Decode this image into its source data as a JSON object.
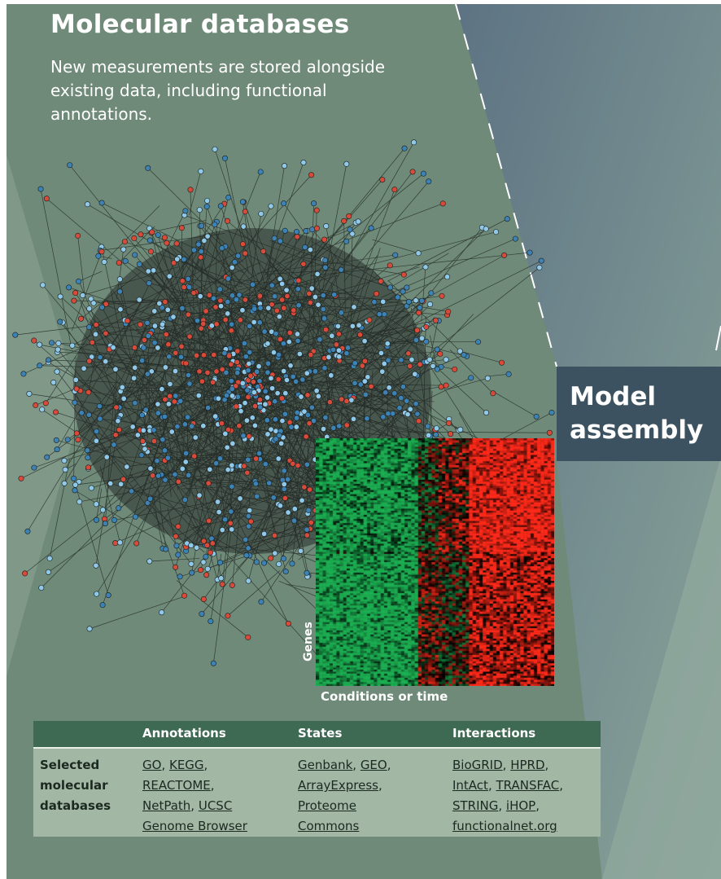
{
  "panel": {
    "title": "Molecular databases",
    "subtitle_lines": [
      "New measurements are stored alongside",
      "existing data, including functional",
      "annotations."
    ],
    "next_step_lines": [
      "Model",
      "assembly"
    ]
  },
  "heatmap": {
    "y_label": "Genes",
    "x_label": "Conditions or time"
  },
  "colors": {
    "background_main": "#6f8a78",
    "node_blue": "#3d82b5",
    "node_light_blue": "#8fc8e8",
    "node_red": "#d84a3a",
    "heatmap_red": "#ff2a1a",
    "heatmap_green": "#1fbf5a",
    "table_header": "#3e6a53",
    "table_body": "#a3b7a5",
    "model_box": "#3d5261"
  },
  "table": {
    "headers": [
      "Annotations",
      "States",
      "Interactions"
    ],
    "row_label_lines": [
      "Selected",
      "molecular",
      "databases"
    ],
    "annotations_lines": [
      [
        {
          "t": "GO",
          "link": true
        },
        {
          "t": ", ",
          "link": false
        },
        {
          "t": "KEGG",
          "link": true
        },
        {
          "t": ",",
          "link": false
        }
      ],
      [
        {
          "t": "REACTOME",
          "link": true
        },
        {
          "t": ",",
          "link": false
        }
      ],
      [
        {
          "t": "NetPath",
          "link": true
        },
        {
          "t": ", ",
          "link": false
        },
        {
          "t": "UCSC ",
          "link": true
        }
      ],
      [
        {
          "t": "Genome Browser",
          "link": true
        }
      ]
    ],
    "states_lines": [
      [
        {
          "t": "Genbank",
          "link": true
        },
        {
          "t": ", ",
          "link": false
        },
        {
          "t": "GEO",
          "link": true
        },
        {
          "t": ",",
          "link": false
        }
      ],
      [
        {
          "t": "ArrayExpress",
          "link": true
        },
        {
          "t": ",",
          "link": false
        }
      ],
      [
        {
          "t": "Proteome ",
          "link": true
        }
      ],
      [
        {
          "t": "Commons",
          "link": true
        }
      ]
    ],
    "interactions_lines": [
      [
        {
          "t": "BioGRID",
          "link": true
        },
        {
          "t": ", ",
          "link": false
        },
        {
          "t": "HPRD",
          "link": true
        },
        {
          "t": ",",
          "link": false
        }
      ],
      [
        {
          "t": "IntAct",
          "link": true
        },
        {
          "t": ", ",
          "link": false
        },
        {
          "t": "TRANSFAC",
          "link": true
        },
        {
          "t": ",",
          "link": false
        }
      ],
      [
        {
          "t": "STRING",
          "link": true
        },
        {
          "t": ", ",
          "link": false
        },
        {
          "t": "iHOP",
          "link": true
        },
        {
          "t": ",",
          "link": false
        }
      ],
      [
        {
          "t": "functionalnet.org",
          "link": true
        }
      ]
    ]
  }
}
